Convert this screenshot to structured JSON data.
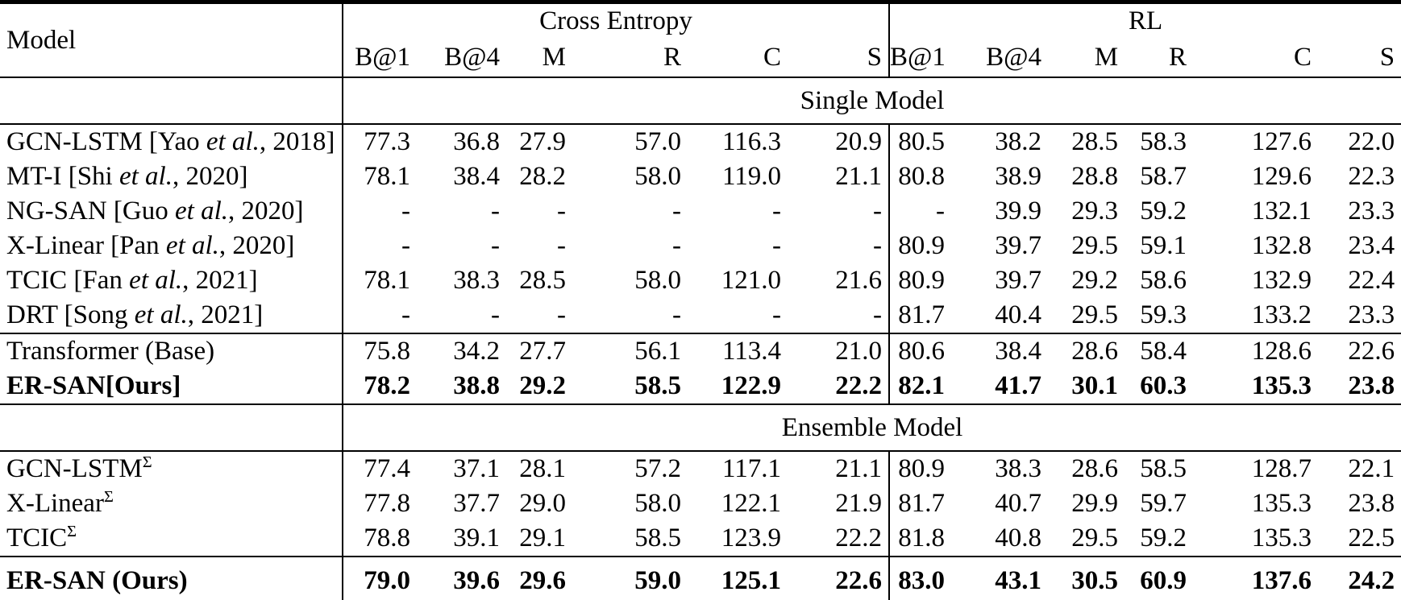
{
  "table": {
    "model_header": "Model",
    "groups": [
      {
        "label": "Cross Entropy",
        "metrics": [
          "B@1",
          "B@4",
          "M",
          "R",
          "C",
          "S"
        ]
      },
      {
        "label": "RL",
        "metrics": [
          "B@1",
          "B@4",
          "M",
          "R",
          "C",
          "S"
        ]
      }
    ],
    "body": [
      {
        "type": "band",
        "label": "Single Model"
      },
      {
        "type": "row",
        "pre": "GCN-LSTM [Yao ",
        "it": "et al.",
        "post": ", 2018]",
        "sup": "",
        "bold": false,
        "values": [
          "77.3",
          "36.8",
          "27.9",
          "57.0",
          "116.3",
          "20.9",
          "80.5",
          "38.2",
          "28.5",
          "58.3",
          "127.6",
          "22.0"
        ]
      },
      {
        "type": "row",
        "pre": "MT-I [Shi ",
        "it": "et al.",
        "post": ", 2020]",
        "sup": "",
        "bold": false,
        "values": [
          "78.1",
          "38.4",
          "28.2",
          "58.0",
          "119.0",
          "21.1",
          "80.8",
          "38.9",
          "28.8",
          "58.7",
          "129.6",
          "22.3"
        ]
      },
      {
        "type": "row",
        "pre": "NG-SAN [Guo ",
        "it": "et al.",
        "post": ", 2020]",
        "sup": "",
        "bold": false,
        "values": [
          "-",
          "-",
          "-",
          "-",
          "-",
          "-",
          "-",
          "39.9",
          "29.3",
          "59.2",
          "132.1",
          "23.3"
        ]
      },
      {
        "type": "row",
        "pre": "X-Linear [Pan ",
        "it": "et al.",
        "post": ", 2020]",
        "sup": "",
        "bold": false,
        "values": [
          "-",
          "-",
          "-",
          "-",
          "-",
          "-",
          "80.9",
          "39.7",
          "29.5",
          "59.1",
          "132.8",
          "23.4"
        ]
      },
      {
        "type": "row",
        "pre": "TCIC [Fan ",
        "it": "et al.",
        "post": ", 2021]",
        "sup": "",
        "bold": false,
        "values": [
          "78.1",
          "38.3",
          "28.5",
          "58.0",
          "121.0",
          "21.6",
          "80.9",
          "39.7",
          "29.2",
          "58.6",
          "132.9",
          "22.4"
        ]
      },
      {
        "type": "row",
        "pre": "DRT [Song ",
        "it": "et al.",
        "post": ", 2021]",
        "sup": "",
        "bold": false,
        "values": [
          "-",
          "-",
          "-",
          "-",
          "-",
          "-",
          "81.7",
          "40.4",
          "29.5",
          "59.3",
          "133.2",
          "23.3"
        ]
      },
      {
        "type": "row",
        "rule_above": true,
        "pre": "Transformer (Base)",
        "it": "",
        "post": "",
        "sup": "",
        "bold": false,
        "values": [
          "75.8",
          "34.2",
          "27.7",
          "56.1",
          "113.4",
          "21.0",
          "80.6",
          "38.4",
          "28.6",
          "58.4",
          "128.6",
          "22.6"
        ]
      },
      {
        "type": "row",
        "pre": "ER-SAN[Ours]",
        "it": "",
        "post": "",
        "sup": "",
        "bold": true,
        "values": [
          "78.2",
          "38.8",
          "29.2",
          "58.5",
          "122.9",
          "22.2",
          "82.1",
          "41.7",
          "30.1",
          "60.3",
          "135.3",
          "23.8"
        ]
      },
      {
        "type": "band",
        "label": "Ensemble Model"
      },
      {
        "type": "row",
        "pre": "GCN-LSTM",
        "it": "",
        "post": "",
        "sup": "Σ",
        "bold": false,
        "values": [
          "77.4",
          "37.1",
          "28.1",
          "57.2",
          "117.1",
          "21.1",
          "80.9",
          "38.3",
          "28.6",
          "58.5",
          "128.7",
          "22.1"
        ]
      },
      {
        "type": "row",
        "pre": "X-Linear",
        "it": "",
        "post": "",
        "sup": "Σ",
        "bold": false,
        "values": [
          "77.8",
          "37.7",
          "29.0",
          "58.0",
          "122.1",
          "21.9",
          "81.7",
          "40.7",
          "29.9",
          "59.7",
          "135.3",
          "23.8"
        ]
      },
      {
        "type": "row",
        "pre": "TCIC",
        "it": "",
        "post": "",
        "sup": "Σ",
        "bold": false,
        "values": [
          "78.8",
          "39.1",
          "29.1",
          "58.5",
          "123.9",
          "22.2",
          "81.8",
          "40.8",
          "29.5",
          "59.2",
          "135.3",
          "22.5"
        ]
      },
      {
        "type": "row",
        "rule_above": true,
        "pre": "ER-SAN (Ours)",
        "it": "",
        "post": "",
        "sup": "",
        "bold": true,
        "values": [
          "79.0",
          "39.6",
          "29.6",
          "59.0",
          "125.1",
          "22.6",
          "83.0",
          "43.1",
          "30.5",
          "60.9",
          "137.6",
          "24.2"
        ]
      }
    ]
  }
}
